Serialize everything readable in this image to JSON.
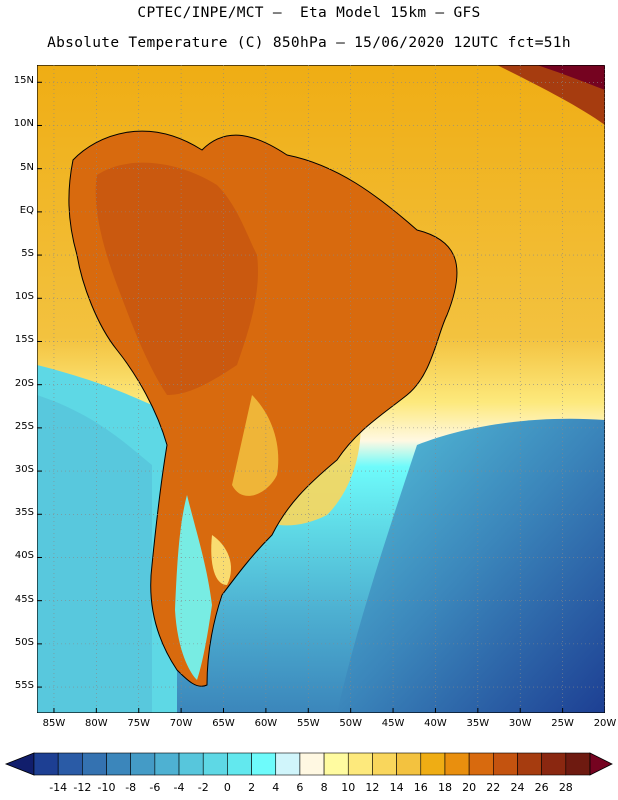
{
  "header": {
    "line1": "CPTEC/INPE/MCT –  Eta Model 15km – GFS",
    "line2": "Absolute Temperature (C) 850hPa – 15/06/2020 12UTC fct=51h"
  },
  "map": {
    "lat_range": [
      -58,
      17
    ],
    "lon_range": [
      -87,
      -20
    ],
    "lat_ticks": [
      "15N",
      "10N",
      "5N",
      "EQ",
      "5S",
      "10S",
      "15S",
      "20S",
      "25S",
      "30S",
      "35S",
      "40S",
      "45S",
      "50S",
      "55S"
    ],
    "lon_ticks": [
      "85W",
      "80W",
      "75W",
      "70W",
      "65W",
      "60W",
      "55W",
      "50W",
      "45W",
      "40W",
      "35W",
      "30W",
      "25W",
      "20W"
    ],
    "gridlines": "dotted"
  },
  "colorbar": {
    "labels": [
      "-14",
      "-12",
      "-10",
      "-8",
      "-6",
      "-4",
      "-2",
      "0",
      "2",
      "4",
      "6",
      "8",
      "10",
      "12",
      "14",
      "16",
      "18",
      "20",
      "22",
      "24",
      "26",
      "28"
    ],
    "colors": [
      "#1d3f93",
      "#2a5ba6",
      "#3472b1",
      "#3b86bb",
      "#449bc6",
      "#4eb1d2",
      "#57c6dc",
      "#5ed8e5",
      "#62e8ee",
      "#6efbfb",
      "#d0f5fb",
      "#fff8e2",
      "#fffba0",
      "#fde97c",
      "#f9d65c",
      "#f3c23f",
      "#efad14",
      "#e98f0e",
      "#d86a0e",
      "#c4530f",
      "#a63c0f",
      "#8a2710",
      "#6e1a10"
    ],
    "underflow_color": "#111e6c",
    "overflow_color": "#750320"
  }
}
